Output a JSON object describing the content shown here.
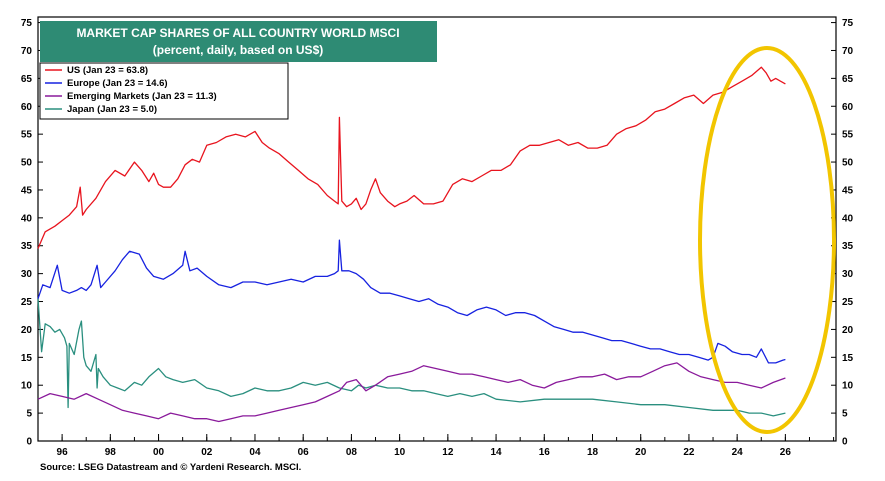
{
  "chart_data": {
    "type": "line",
    "title": "MARKET CAP SHARES OF ALL COUNTRY WORLD MSCI",
    "subtitle": "(percent, daily, based on US$)",
    "xlabel": "",
    "ylabel": "",
    "x_ticks": [
      "96",
      "98",
      "00",
      "02",
      "04",
      "06",
      "08",
      "10",
      "12",
      "14",
      "16",
      "18",
      "20",
      "22",
      "24",
      "26"
    ],
    "x_tick_years": [
      1996,
      1998,
      2000,
      2002,
      2004,
      2006,
      2008,
      2010,
      2012,
      2014,
      2016,
      2018,
      2020,
      2022,
      2024,
      2026
    ],
    "xlim": [
      1995,
      2028.1
    ],
    "y_ticks": [
      "0",
      "5",
      "10",
      "15",
      "20",
      "25",
      "30",
      "35",
      "40",
      "45",
      "50",
      "55",
      "60",
      "65",
      "70",
      "75"
    ],
    "ylim": [
      0,
      76
    ],
    "grid": false,
    "legend_position": "top-left",
    "series": [
      {
        "name": "US (Jan 23 = 63.8)",
        "color": "#e8141e",
        "x": [
          1995.0,
          1995.3,
          1995.7,
          1996.0,
          1996.3,
          1996.6,
          1996.75,
          1996.85,
          1997.0,
          1997.4,
          1997.8,
          1998.2,
          1998.6,
          1999.0,
          1999.3,
          1999.6,
          1999.8,
          2000.0,
          2000.2,
          2000.5,
          2000.8,
          2001.1,
          2001.4,
          2001.7,
          2002.0,
          2002.4,
          2002.8,
          2003.2,
          2003.6,
          2004.0,
          2004.3,
          2004.6,
          2005.0,
          2005.4,
          2005.8,
          2006.2,
          2006.6,
          2007.0,
          2007.3,
          2007.45,
          2007.5,
          2007.6,
          2007.8,
          2008.0,
          2008.2,
          2008.4,
          2008.6,
          2008.8,
          2009.0,
          2009.2,
          2009.5,
          2009.8,
          2010.0,
          2010.3,
          2010.6,
          2011.0,
          2011.4,
          2011.8,
          2012.2,
          2012.6,
          2013.0,
          2013.4,
          2013.8,
          2014.2,
          2014.6,
          2015.0,
          2015.4,
          2015.8,
          2016.2,
          2016.6,
          2017.0,
          2017.4,
          2017.8,
          2018.2,
          2018.6,
          2019.0,
          2019.4,
          2019.8,
          2020.2,
          2020.6,
          2021.0,
          2021.4,
          2021.8,
          2022.2,
          2022.6,
          2023.0,
          2023.4,
          2023.8,
          2024.2,
          2024.6,
          2025.0,
          2025.2,
          2025.4,
          2025.6,
          2025.8,
          2026.0
        ],
        "values": [
          34.5,
          37.5,
          38.5,
          39.5,
          40.5,
          42.0,
          45.5,
          40.5,
          41.5,
          43.5,
          46.5,
          48.5,
          47.5,
          50.0,
          48.5,
          46.5,
          48.0,
          46.0,
          45.5,
          45.5,
          47.0,
          49.5,
          50.5,
          50.0,
          53.0,
          53.5,
          54.5,
          55.0,
          54.5,
          55.5,
          53.5,
          52.5,
          51.5,
          50.0,
          48.5,
          47.0,
          46.0,
          44.0,
          43.0,
          42.5,
          58.0,
          43.0,
          42.0,
          42.5,
          43.5,
          41.5,
          42.5,
          45.0,
          47.0,
          44.5,
          43.0,
          42.0,
          42.5,
          43.0,
          44.0,
          42.5,
          42.5,
          43.0,
          46.0,
          47.0,
          46.5,
          47.5,
          48.5,
          48.5,
          49.5,
          52.0,
          53.0,
          53.0,
          53.5,
          54.0,
          53.0,
          53.5,
          52.5,
          52.5,
          53.0,
          55.0,
          56.0,
          56.5,
          57.5,
          59.0,
          59.5,
          60.5,
          61.5,
          62.0,
          60.5,
          62.0,
          62.5,
          63.5,
          64.5,
          65.5,
          67.0,
          66.0,
          64.5,
          65.0,
          64.5,
          64.0
        ]
      },
      {
        "name": "Europe (Jan 23 = 14.6)",
        "color": "#1722e0",
        "x": [
          1995.0,
          1995.2,
          1995.5,
          1995.8,
          1996.0,
          1996.3,
          1996.6,
          1996.8,
          1997.0,
          1997.2,
          1997.45,
          1997.6,
          1997.8,
          1998.2,
          1998.5,
          1998.8,
          1999.2,
          1999.5,
          1999.8,
          2000.2,
          2000.6,
          2001.0,
          2001.1,
          2001.3,
          2001.6,
          2002.0,
          2002.5,
          2003.0,
          2003.5,
          2004.0,
          2004.5,
          2005.0,
          2005.5,
          2006.0,
          2006.5,
          2007.0,
          2007.3,
          2007.45,
          2007.5,
          2007.6,
          2007.9,
          2008.2,
          2008.5,
          2008.8,
          2009.2,
          2009.6,
          2010.0,
          2010.4,
          2010.8,
          2011.2,
          2011.6,
          2012.0,
          2012.4,
          2012.8,
          2013.2,
          2013.6,
          2014.0,
          2014.4,
          2014.8,
          2015.2,
          2015.6,
          2016.0,
          2016.4,
          2016.8,
          2017.2,
          2017.6,
          2018.0,
          2018.4,
          2018.8,
          2019.2,
          2019.6,
          2020.0,
          2020.4,
          2020.8,
          2021.2,
          2021.6,
          2022.0,
          2022.4,
          2022.8,
          2023.0,
          2023.2,
          2023.5,
          2023.8,
          2024.2,
          2024.5,
          2024.8,
          2025.0,
          2025.3,
          2025.6,
          2025.9,
          2026.0
        ],
        "values": [
          25.5,
          28.0,
          27.5,
          31.5,
          27.0,
          26.5,
          27.0,
          27.5,
          27.0,
          28.0,
          31.5,
          27.5,
          28.5,
          30.5,
          32.5,
          34.0,
          33.5,
          31.0,
          29.5,
          29.0,
          30.0,
          31.5,
          34.0,
          30.5,
          31.0,
          29.5,
          28.0,
          27.5,
          28.5,
          28.5,
          28.0,
          28.5,
          29.0,
          28.5,
          29.5,
          29.5,
          30.0,
          30.5,
          36.0,
          30.5,
          30.5,
          30.0,
          29.0,
          27.5,
          26.5,
          26.5,
          26.0,
          25.5,
          25.0,
          25.5,
          24.5,
          24.0,
          23.0,
          22.5,
          23.5,
          24.0,
          23.5,
          22.5,
          23.0,
          23.0,
          22.5,
          21.5,
          20.5,
          20.0,
          19.5,
          19.5,
          19.0,
          18.5,
          18.0,
          18.0,
          17.5,
          17.0,
          16.5,
          16.5,
          16.0,
          15.5,
          15.5,
          15.0,
          14.5,
          15.0,
          17.5,
          17.0,
          16.0,
          15.5,
          15.5,
          15.0,
          16.5,
          14.0,
          14.0,
          14.5,
          14.6
        ]
      },
      {
        "name": "Emerging Markets (Jan 23 = 11.3)",
        "color": "#8a1a9b",
        "x": [
          1995.0,
          1995.5,
          1996.0,
          1996.5,
          1997.0,
          1997.5,
          1998.0,
          1998.5,
          1999.0,
          1999.5,
          2000.0,
          2000.5,
          2001.0,
          2001.5,
          2002.0,
          2002.5,
          2003.0,
          2003.5,
          2004.0,
          2004.5,
          2005.0,
          2005.5,
          2006.0,
          2006.5,
          2007.0,
          2007.5,
          2007.8,
          2008.2,
          2008.6,
          2009.0,
          2009.5,
          2010.0,
          2010.5,
          2011.0,
          2011.5,
          2012.0,
          2012.5,
          2013.0,
          2013.5,
          2014.0,
          2014.5,
          2015.0,
          2015.5,
          2016.0,
          2016.5,
          2017.0,
          2017.5,
          2018.0,
          2018.5,
          2019.0,
          2019.5,
          2020.0,
          2020.5,
          2021.0,
          2021.5,
          2022.0,
          2022.5,
          2023.0,
          2023.5,
          2024.0,
          2024.5,
          2025.0,
          2025.5,
          2026.0
        ],
        "values": [
          7.5,
          8.5,
          8.0,
          7.5,
          8.5,
          7.5,
          6.5,
          5.5,
          5.0,
          4.5,
          4.0,
          5.0,
          4.5,
          4.0,
          4.0,
          3.5,
          4.0,
          4.5,
          4.5,
          5.0,
          5.5,
          6.0,
          6.5,
          7.0,
          8.0,
          9.0,
          10.5,
          11.0,
          9.0,
          10.0,
          11.5,
          12.0,
          12.5,
          13.5,
          13.0,
          12.5,
          12.0,
          12.0,
          11.5,
          11.0,
          10.5,
          11.0,
          10.0,
          9.5,
          10.5,
          11.0,
          11.5,
          11.5,
          12.0,
          11.0,
          11.5,
          11.5,
          12.5,
          13.5,
          14.0,
          12.5,
          11.5,
          11.0,
          10.5,
          10.5,
          10.0,
          9.5,
          10.5,
          11.3
        ]
      },
      {
        "name": "Japan (Jan 23 = 5.0)",
        "color": "#2a8f7f",
        "x": [
          1995.0,
          1995.15,
          1995.3,
          1995.5,
          1995.7,
          1995.9,
          1996.1,
          1996.2,
          1996.25,
          1996.3,
          1996.5,
          1996.7,
          1996.8,
          1996.9,
          1997.0,
          1997.2,
          1997.4,
          1997.45,
          1997.5,
          1997.7,
          1998.0,
          1998.3,
          1998.6,
          1999.0,
          1999.3,
          1999.6,
          2000.0,
          2000.3,
          2000.6,
          2001.0,
          2001.5,
          2002.0,
          2002.5,
          2003.0,
          2003.5,
          2004.0,
          2004.5,
          2005.0,
          2005.5,
          2006.0,
          2006.5,
          2007.0,
          2007.5,
          2008.0,
          2008.3,
          2008.6,
          2009.0,
          2009.5,
          2010.0,
          2010.5,
          2011.0,
          2011.5,
          2012.0,
          2012.5,
          2013.0,
          2013.5,
          2014.0,
          2015.0,
          2016.0,
          2017.0,
          2018.0,
          2019.0,
          2020.0,
          2021.0,
          2022.0,
          2023.0,
          2024.0,
          2024.5,
          2025.0,
          2025.5,
          2026.0
        ],
        "values": [
          25.5,
          16.0,
          21.0,
          20.5,
          19.5,
          20.0,
          18.5,
          17.0,
          6.0,
          17.5,
          15.5,
          20.0,
          21.5,
          15.0,
          13.5,
          12.5,
          15.5,
          9.5,
          13.0,
          11.5,
          10.0,
          9.5,
          9.0,
          10.5,
          10.0,
          11.5,
          13.0,
          11.5,
          11.0,
          10.5,
          11.0,
          9.5,
          9.0,
          8.0,
          8.5,
          9.5,
          9.0,
          9.0,
          9.5,
          10.5,
          10.0,
          10.5,
          9.5,
          9.0,
          10.0,
          9.5,
          10.0,
          9.5,
          9.5,
          9.0,
          9.0,
          8.5,
          8.0,
          8.5,
          8.0,
          8.5,
          7.5,
          7.0,
          7.5,
          7.5,
          7.5,
          7.0,
          6.5,
          6.5,
          6.0,
          5.5,
          5.5,
          5.0,
          5.0,
          4.5,
          5.0
        ]
      }
    ]
  },
  "source_note": "Source: LSEG Datastream and © Yardeni Research. MSCI.",
  "colors": {
    "title_box": "#2e8b74",
    "highlight_ellipse": "#f2c500"
  }
}
